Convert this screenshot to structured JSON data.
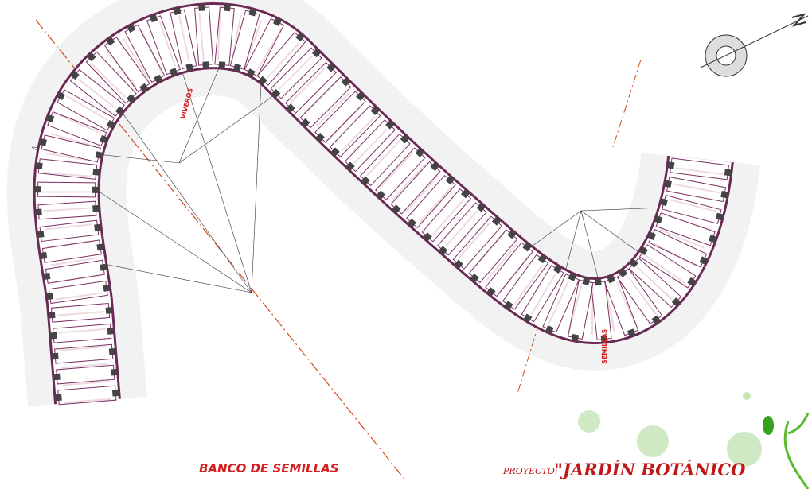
{
  "labels": {
    "viveros": "VIVEROS",
    "semillas": "SEMILLAS"
  },
  "title": "BANCO DE SEMILLAS",
  "project": {
    "label": "PROYECTO:",
    "name": "\"JARDÍN BOTÁNICO"
  }
}
